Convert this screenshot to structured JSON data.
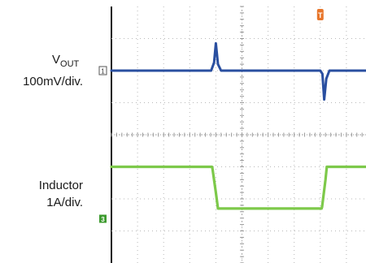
{
  "chart_data": {
    "type": "line",
    "title": "",
    "xlabel": "",
    "ylabel": "",
    "grid": true,
    "divisions": {
      "x": 10,
      "y": 8
    },
    "x": [
      0,
      3.85,
      3.95,
      4.1,
      4.25,
      8.05,
      8.18,
      8.25,
      10
    ],
    "series": [
      {
        "name": "VOUT",
        "label_main": "V",
        "label_sub": "OUT",
        "scale": "100mV/div.",
        "marker": "1",
        "color": "#2a4fa0",
        "units": "div",
        "level": 6.0,
        "x": [
          0,
          3.82,
          3.93,
          4.0,
          4.08,
          4.2,
          8.0,
          8.08,
          8.15,
          8.23,
          8.35,
          10
        ],
        "values": [
          6.0,
          6.0,
          6.25,
          6.85,
          6.2,
          6.0,
          6.0,
          5.9,
          5.1,
          5.75,
          6.0,
          6.0
        ]
      },
      {
        "name": "Inductor",
        "scale": "1A/div.",
        "marker": "3",
        "color": "#7dc94a",
        "units": "div",
        "x": [
          0,
          3.85,
          3.87,
          4.0,
          4.08,
          8.05,
          8.07,
          8.2,
          8.25,
          10
        ],
        "values": [
          3.0,
          3.0,
          2.95,
          2.2,
          1.7,
          1.7,
          1.75,
          2.6,
          3.0,
          3.0
        ]
      }
    ],
    "trigger_marker": {
      "label": "T",
      "color": "#e8762b",
      "x_div": 8.0
    }
  }
}
